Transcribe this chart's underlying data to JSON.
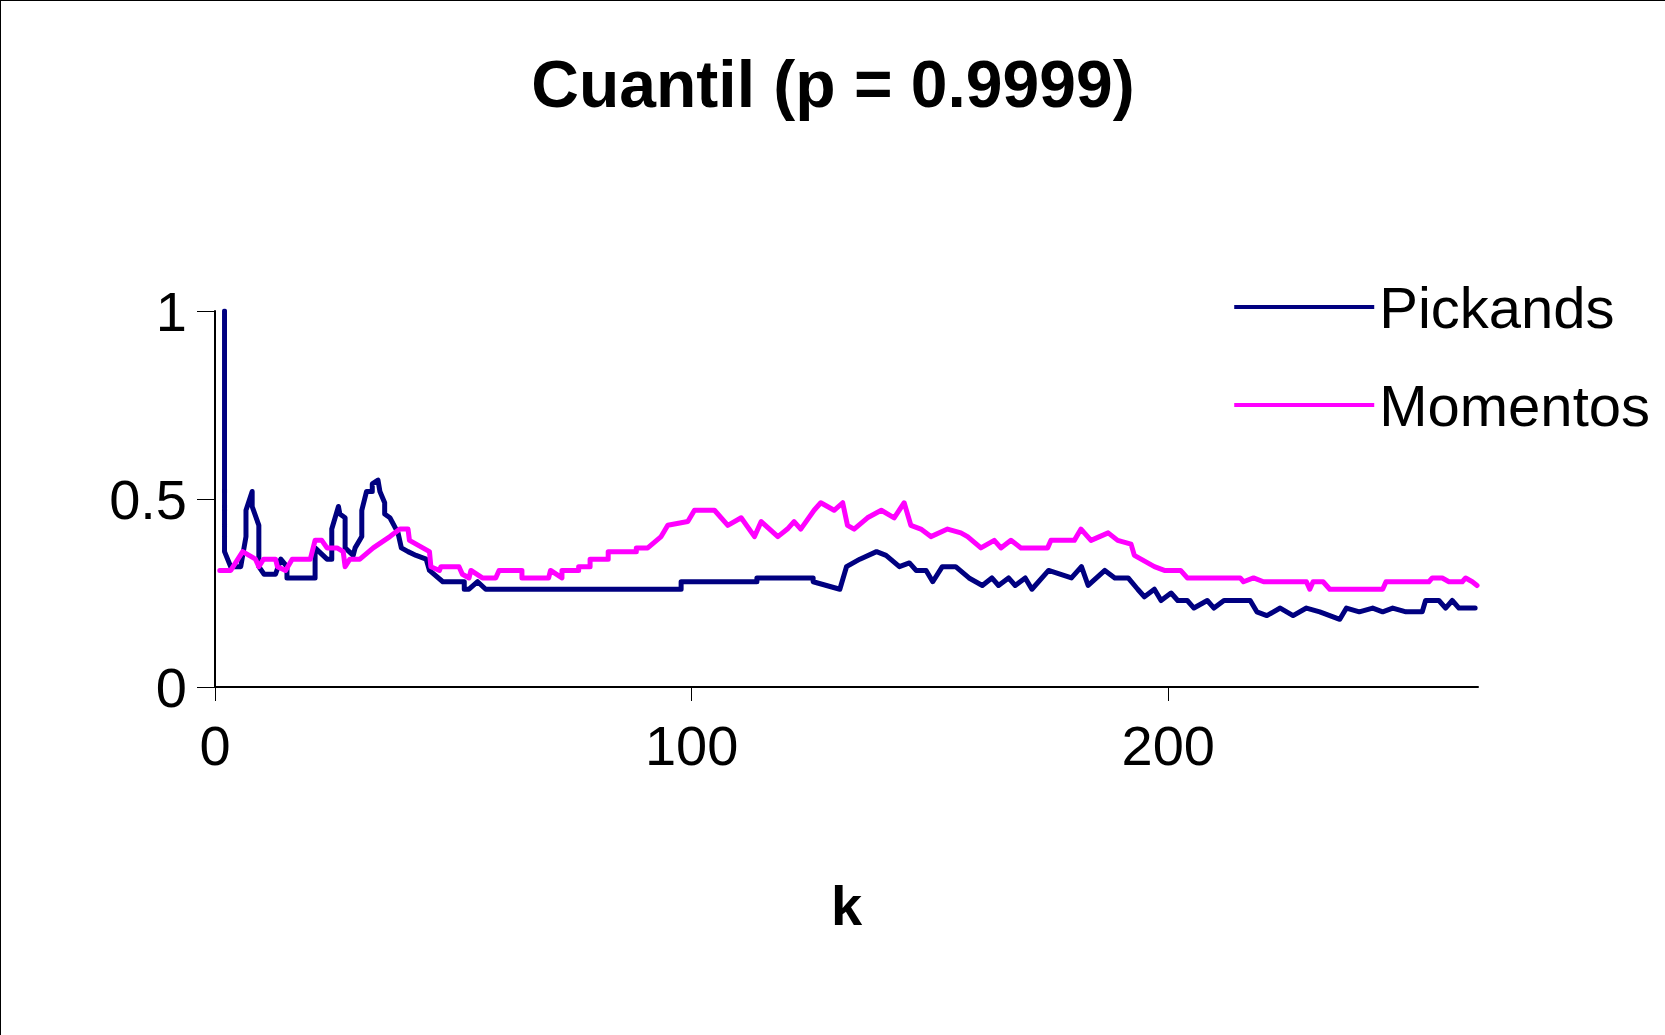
{
  "chart_data": {
    "type": "line",
    "title": "Cuantil (p = 0.9999)",
    "xlabel": "k",
    "xlim": [
      0,
      265
    ],
    "xticks": [
      0,
      100,
      200
    ],
    "ylim": [
      0,
      1
    ],
    "yticks": [
      0,
      0.5,
      1
    ],
    "grid": false,
    "legend": "top right",
    "marker": "none",
    "line_style": "solid",
    "series": [
      {
        "name": "Pickands",
        "color": "#000080",
        "x": [
          2,
          2,
          3.3,
          5.4,
          6.5,
          6.5,
          7.8,
          7.8,
          9.2,
          9.2,
          10.3,
          12.7,
          13.8,
          15.1,
          15.1,
          21,
          21,
          23.5,
          24.5,
          24.5,
          25.9,
          26.2,
          27.3,
          27.3,
          29,
          29.4,
          30.8,
          30.8,
          31.8,
          33,
          33,
          34.2,
          34.6,
          35.6,
          35.6,
          36.7,
          38.4,
          39.1,
          40.5,
          42.2,
          44.3,
          45,
          47.8,
          52.3,
          52.3,
          53.3,
          55.1,
          56.8,
          97.8,
          97.8,
          113.7,
          113.7,
          125.5,
          125.5,
          131.1,
          132.5,
          135.3,
          138.8,
          140.8,
          143.6,
          145.7,
          147.1,
          149.2,
          150.6,
          152.6,
          155.4,
          158.2,
          161,
          163,
          164.4,
          166.5,
          167.9,
          170,
          171.4,
          174.9,
          179.7,
          181.8,
          183.2,
          186.7,
          188.8,
          191.6,
          193.6,
          195,
          197.1,
          198.5,
          200.6,
          202,
          204,
          205.4,
          208.2,
          209.6,
          211.7,
          213.7,
          217.2,
          218.6,
          220.7,
          223.5,
          226.2,
          229,
          231.8,
          236,
          237.4,
          240.1,
          242.9,
          245,
          247.1,
          249.9,
          253.3,
          254,
          256.8,
          258.2,
          259.6,
          261,
          264.4
        ],
        "values": [
          1,
          0.36,
          0.32,
          0.32,
          0.4,
          0.47,
          0.52,
          0.48,
          0.43,
          0.32,
          0.3,
          0.3,
          0.34,
          0.32,
          0.29,
          0.29,
          0.37,
          0.34,
          0.34,
          0.42,
          0.48,
          0.46,
          0.45,
          0.37,
          0.35,
          0.37,
          0.4,
          0.47,
          0.52,
          0.52,
          0.54,
          0.55,
          0.52,
          0.49,
          0.46,
          0.45,
          0.41,
          0.37,
          0.36,
          0.35,
          0.34,
          0.31,
          0.28,
          0.28,
          0.26,
          0.26,
          0.28,
          0.26,
          0.26,
          0.28,
          0.28,
          0.29,
          0.29,
          0.28,
          0.26,
          0.32,
          0.34,
          0.36,
          0.35,
          0.32,
          0.33,
          0.31,
          0.31,
          0.28,
          0.32,
          0.32,
          0.29,
          0.27,
          0.29,
          0.27,
          0.29,
          0.27,
          0.29,
          0.26,
          0.31,
          0.29,
          0.32,
          0.27,
          0.31,
          0.29,
          0.29,
          0.26,
          0.24,
          0.26,
          0.23,
          0.25,
          0.23,
          0.23,
          0.21,
          0.23,
          0.21,
          0.23,
          0.23,
          0.23,
          0.2,
          0.19,
          0.21,
          0.19,
          0.21,
          0.2,
          0.18,
          0.21,
          0.2,
          0.21,
          0.2,
          0.21,
          0.2,
          0.2,
          0.23,
          0.23,
          0.21,
          0.23,
          0.21,
          0.21
        ]
      },
      {
        "name": "Momentos",
        "color": "#ff00ff",
        "x": [
          1,
          3.3,
          5.8,
          8.5,
          9.2,
          10.2,
          12.7,
          13.1,
          14.8,
          16.2,
          20,
          21,
          22.4,
          23.5,
          25.6,
          26.9,
          27.3,
          28.3,
          30.4,
          33.2,
          36.7,
          38.8,
          40.5,
          40.8,
          43.6,
          45,
          45.3,
          47.1,
          47.4,
          51.2,
          51.9,
          53.3,
          53.7,
          56.1,
          58.2,
          58.9,
          59.6,
          64.4,
          64.4,
          70,
          70.4,
          72.8,
          72.8,
          76.3,
          76.3,
          78.7,
          78.7,
          82.5,
          82.5,
          88.4,
          88.4,
          90.8,
          93.6,
          95,
          99.2,
          100.6,
          104.8,
          107.6,
          110.4,
          113.2,
          114.6,
          118.1,
          120.1,
          121.5,
          122.9,
          125.7,
          127.1,
          129.9,
          131.7,
          132.7,
          134.1,
          136.9,
          139.8,
          142.5,
          144.6,
          146,
          148.1,
          150.2,
          153.7,
          156.5,
          157.9,
          160.7,
          163.5,
          164.9,
          167,
          169.1,
          174.7,
          175.4,
          180.3,
          181.7,
          183.8,
          187.4,
          189.4,
          192.2,
          192.9,
          195.7,
          197.1,
          199.2,
          202.6,
          204,
          215.1,
          215.8,
          217.9,
          220,
          229,
          229.7,
          230.4,
          232.5,
          233.9,
          245,
          245.7,
          254.7,
          255.4,
          257.5,
          258.9,
          261.7,
          262.4,
          263.8,
          264.8
        ],
        "values": [
          0.31,
          0.31,
          0.36,
          0.34,
          0.32,
          0.34,
          0.34,
          0.32,
          0.31,
          0.34,
          0.34,
          0.39,
          0.39,
          0.37,
          0.37,
          0.36,
          0.32,
          0.34,
          0.34,
          0.37,
          0.4,
          0.42,
          0.42,
          0.39,
          0.37,
          0.36,
          0.32,
          0.31,
          0.32,
          0.32,
          0.3,
          0.29,
          0.31,
          0.29,
          0.29,
          0.29,
          0.31,
          0.31,
          0.29,
          0.29,
          0.31,
          0.29,
          0.31,
          0.31,
          0.32,
          0.32,
          0.34,
          0.34,
          0.36,
          0.36,
          0.37,
          0.37,
          0.4,
          0.43,
          0.44,
          0.47,
          0.47,
          0.43,
          0.45,
          0.4,
          0.44,
          0.4,
          0.42,
          0.44,
          0.42,
          0.47,
          0.49,
          0.47,
          0.49,
          0.43,
          0.42,
          0.45,
          0.47,
          0.45,
          0.49,
          0.43,
          0.42,
          0.4,
          0.42,
          0.41,
          0.4,
          0.37,
          0.39,
          0.37,
          0.39,
          0.37,
          0.37,
          0.39,
          0.39,
          0.42,
          0.39,
          0.41,
          0.39,
          0.38,
          0.35,
          0.33,
          0.32,
          0.31,
          0.31,
          0.29,
          0.29,
          0.28,
          0.29,
          0.28,
          0.28,
          0.26,
          0.28,
          0.28,
          0.26,
          0.26,
          0.28,
          0.28,
          0.29,
          0.29,
          0.28,
          0.28,
          0.29,
          0.28,
          0.27
        ]
      }
    ]
  }
}
